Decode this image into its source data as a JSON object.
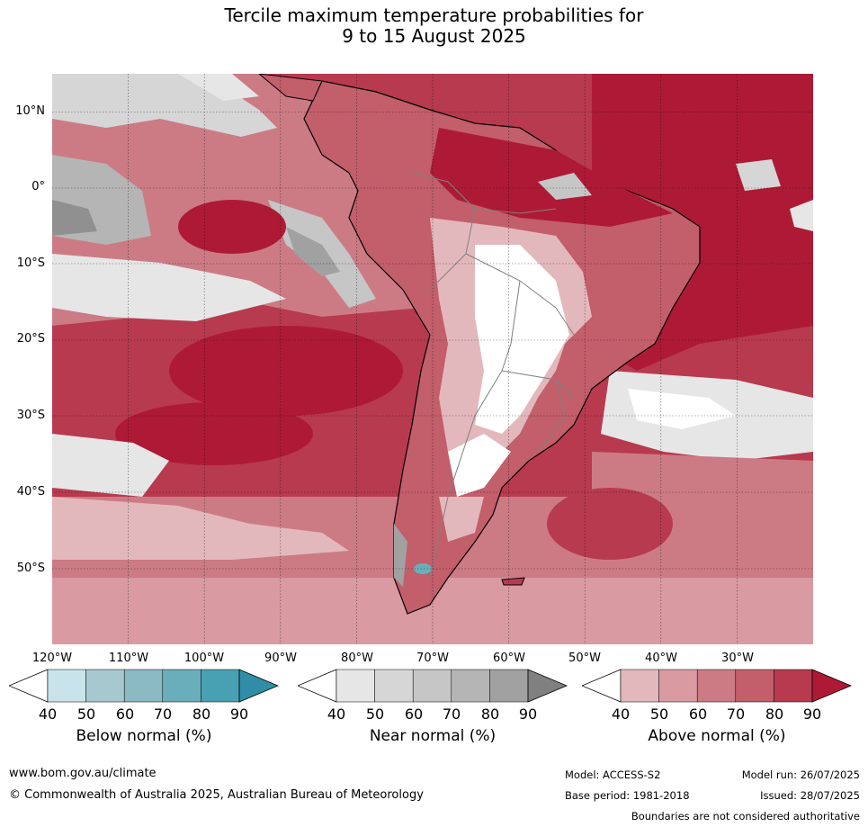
{
  "title": {
    "line1": "Tercile maximum temperature probabilities for",
    "line2": "9 to 15 August 2025"
  },
  "map": {
    "lat_labels": [
      "10°N",
      "0°",
      "10°S",
      "20°S",
      "30°S",
      "40°S",
      "50°S"
    ],
    "lon_labels": [
      "120°W",
      "110°W",
      "100°W",
      "90°W",
      "80°W",
      "70°W",
      "60°W",
      "50°W",
      "40°W",
      "30°W"
    ],
    "extent": {
      "lon": [
        -120,
        -20
      ],
      "lat": [
        -60,
        15
      ]
    }
  },
  "legends": [
    {
      "title": "Below normal (%)",
      "ticks": [
        "40",
        "50",
        "60",
        "70",
        "80",
        "90"
      ],
      "colors": [
        "#ffffff",
        "#c9e3ea",
        "#a6c8cf",
        "#8bbac3",
        "#6aaebb",
        "#48a1b3",
        "#2f8ea6"
      ]
    },
    {
      "title": "Near normal (%)",
      "ticks": [
        "40",
        "50",
        "60",
        "70",
        "80",
        "90"
      ],
      "colors": [
        "#ffffff",
        "#e6e6e6",
        "#d6d6d6",
        "#c6c6c6",
        "#b5b5b5",
        "#a1a1a1",
        "#808080"
      ]
    },
    {
      "title": "Above normal (%)",
      "ticks": [
        "40",
        "50",
        "60",
        "70",
        "80",
        "90"
      ],
      "colors": [
        "#ffffff",
        "#e3b8bc",
        "#d99aa1",
        "#cc7b85",
        "#c35e6b",
        "#b83a4e",
        "#ae1a35"
      ]
    }
  ],
  "footer": {
    "website": "www.bom.gov.au/climate",
    "copyright": "© Commonwealth of Australia 2025, Australian Bureau of Meteorology",
    "model": "Model: ACCESS-S2",
    "base_period": "Base period: 1981-2018",
    "model_run": "Model run: 26/07/2025",
    "issued": "Issued: 28/07/2025",
    "disclaimer": "Boundaries are not considered authoritative"
  }
}
